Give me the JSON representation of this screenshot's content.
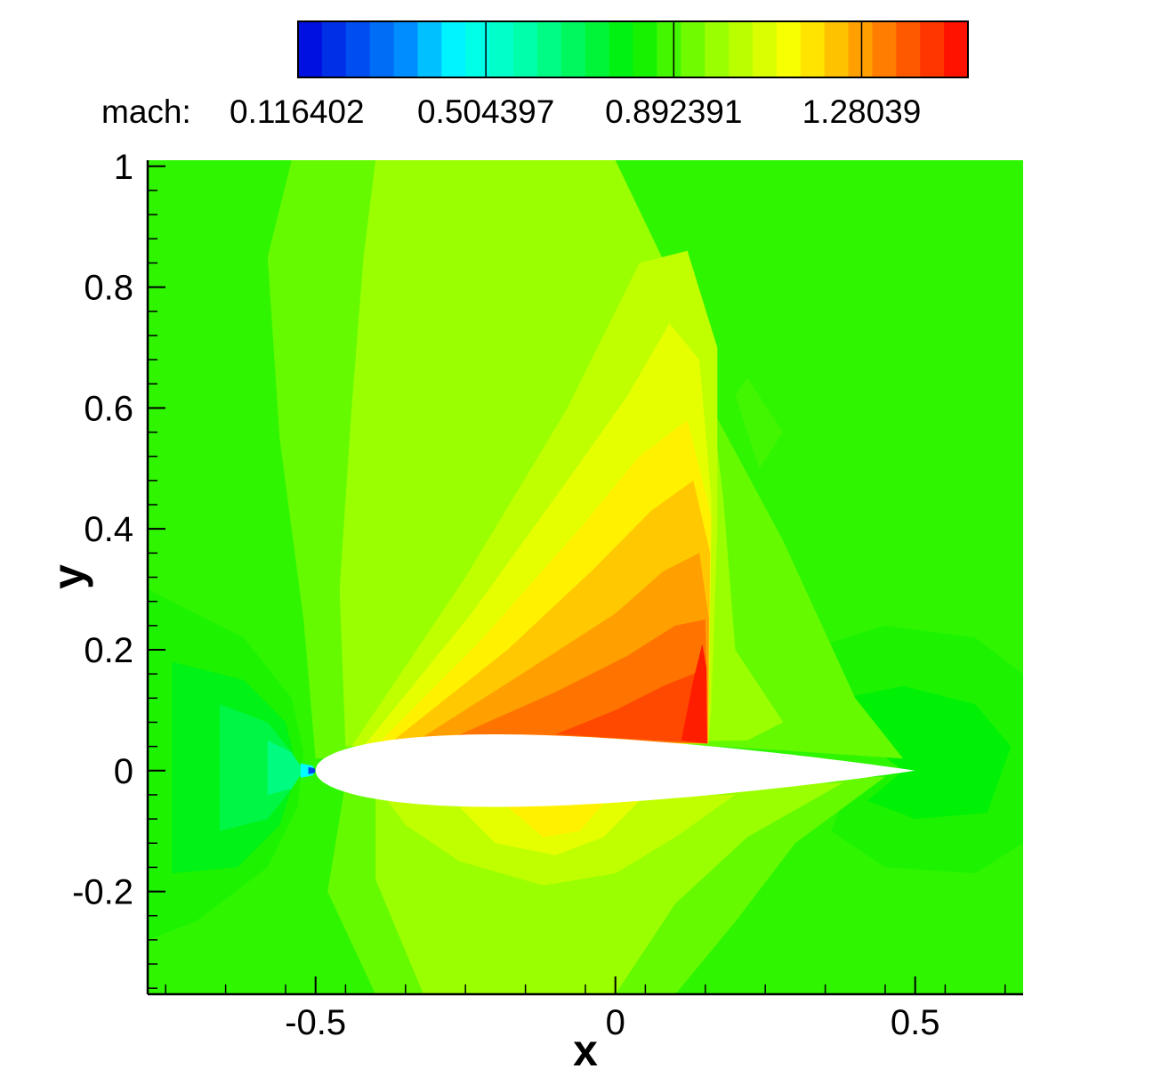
{
  "chart_data": {
    "type": "heatmap",
    "title": "",
    "xlabel": "x",
    "ylabel": "y",
    "xlim": [
      -0.78,
      0.68
    ],
    "ylim": [
      -0.37,
      1.01
    ],
    "x_ticks": [
      -0.5,
      0,
      0.5
    ],
    "x_tick_labels": [
      "-0.5",
      "0",
      "0.5"
    ],
    "y_ticks": [
      -0.2,
      0,
      0.2,
      0.4,
      0.6,
      0.8,
      1
    ],
    "y_tick_labels": [
      "-0.2",
      "0",
      "0.2",
      "0.4",
      "0.6",
      "0.8",
      "1"
    ],
    "grid": false,
    "colorbar": {
      "variable_label": "mach:",
      "position": "top",
      "min": 0.116402,
      "max": 1.5,
      "levels": 28,
      "tick_values": [
        0.116402,
        0.504397,
        0.892391,
        1.28039
      ],
      "tick_labels": [
        "0.116402",
        "0.504397",
        "0.892391",
        "1.28039"
      ]
    },
    "background_mach": 0.86,
    "airfoil": {
      "leading_edge": [
        -0.5,
        0
      ],
      "trailing_edge": [
        0.5,
        0
      ],
      "max_thickness_fraction": 0.12
    },
    "contour_regions": [
      {
        "mach": 0.84,
        "points": [
          [
            -0.78,
            0.3
          ],
          [
            -0.62,
            0.22
          ],
          [
            -0.54,
            0.12
          ],
          [
            -0.52,
            0.03
          ],
          [
            -0.53,
            -0.06
          ],
          [
            -0.58,
            -0.16
          ],
          [
            -0.7,
            -0.25
          ],
          [
            -0.78,
            -0.28
          ]
        ]
      },
      {
        "mach": 0.78,
        "points": [
          [
            -0.74,
            0.18
          ],
          [
            -0.62,
            0.15
          ],
          [
            -0.55,
            0.08
          ],
          [
            -0.53,
            0.0
          ],
          [
            -0.56,
            -0.09
          ],
          [
            -0.63,
            -0.16
          ],
          [
            -0.74,
            -0.17
          ]
        ]
      },
      {
        "mach": 0.72,
        "points": [
          [
            -0.66,
            0.11
          ],
          [
            -0.58,
            0.08
          ],
          [
            -0.54,
            0.03
          ],
          [
            -0.54,
            -0.03
          ],
          [
            -0.58,
            -0.08
          ],
          [
            -0.66,
            -0.1
          ]
        ]
      },
      {
        "mach": 0.64,
        "points": [
          [
            -0.58,
            0.05
          ],
          [
            -0.54,
            0.03
          ],
          [
            -0.52,
            0.0
          ],
          [
            -0.54,
            -0.03
          ],
          [
            -0.58,
            -0.04
          ]
        ]
      },
      {
        "mach": 0.45,
        "points": [
          [
            -0.525,
            0.012
          ],
          [
            -0.505,
            0.008
          ],
          [
            -0.5,
            0.0
          ],
          [
            -0.505,
            -0.008
          ],
          [
            -0.525,
            -0.012
          ]
        ]
      },
      {
        "mach": 0.22,
        "points": [
          [
            -0.512,
            0.006
          ],
          [
            -0.502,
            0.004
          ],
          [
            -0.5,
            0.0
          ],
          [
            -0.502,
            -0.004
          ],
          [
            -0.512,
            -0.006
          ]
        ]
      },
      {
        "mach": 0.84,
        "points": [
          [
            0.32,
            0.2
          ],
          [
            0.45,
            0.24
          ],
          [
            0.6,
            0.22
          ],
          [
            0.68,
            0.16
          ],
          [
            0.68,
            -0.12
          ],
          [
            0.6,
            -0.17
          ],
          [
            0.45,
            -0.16
          ],
          [
            0.36,
            -0.1
          ],
          [
            0.4,
            0.0
          ],
          [
            0.5,
            0.0
          ],
          [
            0.36,
            0.08
          ]
        ]
      },
      {
        "mach": 0.8,
        "points": [
          [
            0.38,
            0.12
          ],
          [
            0.48,
            0.14
          ],
          [
            0.6,
            0.11
          ],
          [
            0.66,
            0.04
          ],
          [
            0.62,
            -0.07
          ],
          [
            0.5,
            -0.08
          ],
          [
            0.42,
            -0.05
          ],
          [
            0.48,
            0.0
          ],
          [
            0.4,
            0.06
          ]
        ]
      },
      {
        "mach": 0.92,
        "points": [
          [
            -0.54,
            1.01
          ],
          [
            -0.18,
            1.01
          ],
          [
            0.15,
            0.62
          ],
          [
            0.28,
            0.38
          ],
          [
            0.4,
            0.12
          ],
          [
            0.48,
            0.02
          ],
          [
            0.18,
            0.04
          ],
          [
            -0.5,
            0.02
          ],
          [
            -0.52,
            0.25
          ],
          [
            -0.56,
            0.55
          ],
          [
            -0.58,
            0.85
          ]
        ]
      },
      {
        "mach": 0.92,
        "points": [
          [
            -0.45,
            -0.02
          ],
          [
            0.45,
            -0.01
          ],
          [
            0.3,
            -0.12
          ],
          [
            0.2,
            -0.25
          ],
          [
            0.1,
            -0.37
          ],
          [
            -0.4,
            -0.37
          ],
          [
            -0.48,
            -0.2
          ]
        ]
      },
      {
        "mach": 0.98,
        "points": [
          [
            -0.4,
            1.01
          ],
          [
            0.0,
            1.01
          ],
          [
            0.15,
            0.7
          ],
          [
            0.18,
            0.45
          ],
          [
            0.2,
            0.2
          ],
          [
            0.28,
            0.08
          ],
          [
            0.22,
            0.05
          ],
          [
            -0.45,
            0.04
          ],
          [
            -0.46,
            0.3
          ],
          [
            -0.44,
            0.6
          ],
          [
            -0.42,
            0.85
          ]
        ]
      },
      {
        "mach": 0.98,
        "points": [
          [
            -0.4,
            -0.04
          ],
          [
            0.38,
            -0.02
          ],
          [
            0.22,
            -0.11
          ],
          [
            0.1,
            -0.22
          ],
          [
            0.0,
            -0.37
          ],
          [
            -0.32,
            -0.37
          ],
          [
            -0.4,
            -0.18
          ]
        ]
      },
      {
        "mach": 1.04,
        "points": [
          [
            -0.44,
            0.04
          ],
          [
            -0.25,
            0.32
          ],
          [
            -0.08,
            0.6
          ],
          [
            0.04,
            0.84
          ],
          [
            0.12,
            0.86
          ],
          [
            0.17,
            0.7
          ],
          [
            0.17,
            0.4
          ],
          [
            0.16,
            0.1
          ],
          [
            0.155,
            0.045
          ],
          [
            -0.2,
            0.055
          ]
        ]
      },
      {
        "mach": 1.04,
        "points": [
          [
            -0.38,
            -0.05
          ],
          [
            0.2,
            -0.04
          ],
          [
            0.1,
            -0.11
          ],
          [
            0.0,
            -0.17
          ],
          [
            -0.12,
            -0.19
          ],
          [
            -0.26,
            -0.15
          ],
          [
            -0.35,
            -0.09
          ]
        ]
      },
      {
        "mach": 1.1,
        "points": [
          [
            -0.42,
            0.04
          ],
          [
            -0.24,
            0.26
          ],
          [
            -0.08,
            0.48
          ],
          [
            0.02,
            0.62
          ],
          [
            0.09,
            0.74
          ],
          [
            0.14,
            0.68
          ],
          [
            0.16,
            0.45
          ],
          [
            0.155,
            0.045
          ]
        ]
      },
      {
        "mach": 1.1,
        "points": [
          [
            -0.26,
            -0.06
          ],
          [
            0.04,
            -0.05
          ],
          [
            -0.02,
            -0.11
          ],
          [
            -0.1,
            -0.14
          ],
          [
            -0.2,
            -0.12
          ]
        ]
      },
      {
        "mach": 1.16,
        "points": [
          [
            -0.4,
            0.04
          ],
          [
            -0.22,
            0.22
          ],
          [
            -0.06,
            0.4
          ],
          [
            0.04,
            0.52
          ],
          [
            0.12,
            0.58
          ],
          [
            0.16,
            0.42
          ],
          [
            0.155,
            0.045
          ]
        ]
      },
      {
        "mach": 1.16,
        "points": [
          [
            -0.18,
            -0.06
          ],
          [
            -0.02,
            -0.055
          ],
          [
            -0.06,
            -0.1
          ],
          [
            -0.12,
            -0.11
          ]
        ]
      },
      {
        "mach": 1.22,
        "points": [
          [
            -0.37,
            0.05
          ],
          [
            -0.18,
            0.2
          ],
          [
            -0.04,
            0.33
          ],
          [
            0.06,
            0.43
          ],
          [
            0.13,
            0.48
          ],
          [
            0.158,
            0.36
          ],
          [
            0.155,
            0.045
          ]
        ]
      },
      {
        "mach": 1.28,
        "points": [
          [
            -0.33,
            0.05
          ],
          [
            -0.14,
            0.17
          ],
          [
            0.0,
            0.26
          ],
          [
            0.08,
            0.33
          ],
          [
            0.14,
            0.36
          ],
          [
            0.156,
            0.25
          ],
          [
            0.154,
            0.045
          ]
        ]
      },
      {
        "mach": 1.34,
        "points": [
          [
            -0.27,
            0.055
          ],
          [
            -0.1,
            0.13
          ],
          [
            0.02,
            0.19
          ],
          [
            0.1,
            0.24
          ],
          [
            0.15,
            0.25
          ],
          [
            0.154,
            0.045
          ]
        ]
      },
      {
        "mach": 1.4,
        "points": [
          [
            -0.1,
            0.06
          ],
          [
            0.0,
            0.1
          ],
          [
            0.08,
            0.14
          ],
          [
            0.13,
            0.16
          ],
          [
            0.152,
            0.17
          ],
          [
            0.153,
            0.045
          ]
        ]
      },
      {
        "mach": 1.46,
        "points": [
          [
            0.11,
            0.05
          ],
          [
            0.12,
            0.1
          ],
          [
            0.13,
            0.15
          ],
          [
            0.145,
            0.21
          ],
          [
            0.152,
            0.17
          ],
          [
            0.153,
            0.045
          ]
        ]
      },
      {
        "mach": 0.88,
        "points": [
          [
            0.22,
            0.65
          ],
          [
            0.28,
            0.56
          ],
          [
            0.24,
            0.5
          ],
          [
            0.2,
            0.62
          ]
        ]
      }
    ]
  }
}
